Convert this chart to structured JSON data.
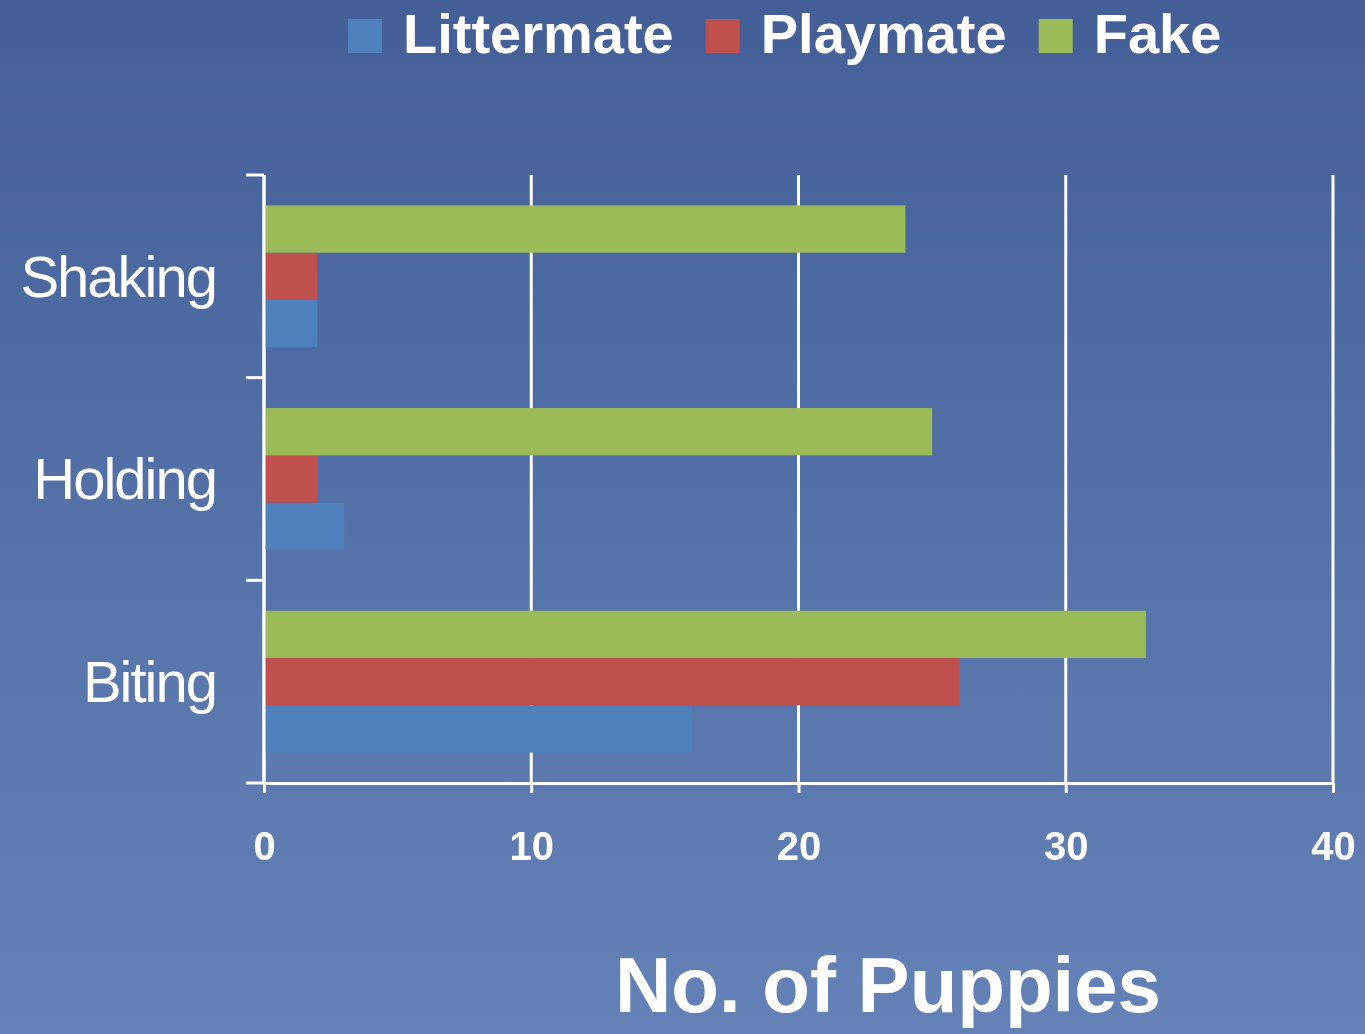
{
  "chart_data": {
    "type": "bar",
    "orientation": "horizontal",
    "xlabel": "No. of Puppies",
    "categories": [
      "Shaking",
      "Holding",
      "Biting"
    ],
    "series": [
      {
        "name": "Littermate",
        "color": "#4f81bd",
        "values": [
          2,
          3,
          16
        ]
      },
      {
        "name": "Playmate",
        "color": "#c0504d",
        "values": [
          2,
          2,
          26
        ]
      },
      {
        "name": "Fake",
        "color": "#9bbb59",
        "values": [
          24,
          25,
          33
        ]
      }
    ],
    "xlim": [
      0,
      40
    ],
    "xticks": [
      0,
      10,
      20,
      30,
      40
    ],
    "grid": "x",
    "legend": "top"
  }
}
